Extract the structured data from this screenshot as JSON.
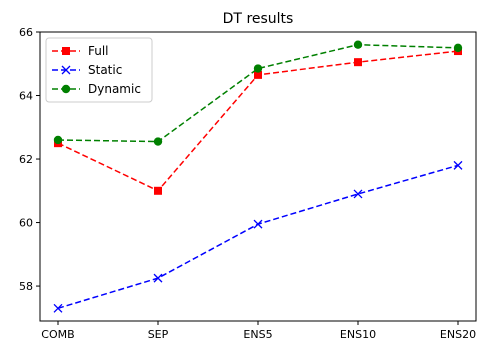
{
  "chart_data": {
    "type": "line",
    "title": "DT results",
    "xlabel": "",
    "ylabel": "",
    "categories": [
      "COMB",
      "SEP",
      "ENS5",
      "ENS10",
      "ENS20"
    ],
    "ylim": [
      56.9,
      66.0
    ],
    "yticks": [
      58,
      60,
      62,
      64,
      66
    ],
    "grid": false,
    "legend_position": "top-left",
    "series": [
      {
        "name": "Full",
        "values": [
          62.5,
          61.0,
          64.65,
          65.05,
          65.4
        ],
        "color": "#ff0000",
        "marker": "square",
        "linestyle": "dashed"
      },
      {
        "name": "Static",
        "values": [
          57.3,
          58.25,
          59.95,
          60.9,
          61.8
        ],
        "color": "#0000ff",
        "marker": "x",
        "linestyle": "dashed"
      },
      {
        "name": "Dynamic",
        "values": [
          62.6,
          62.55,
          64.85,
          65.6,
          65.5
        ],
        "color": "#008000",
        "marker": "circle",
        "linestyle": "dashed"
      }
    ]
  }
}
